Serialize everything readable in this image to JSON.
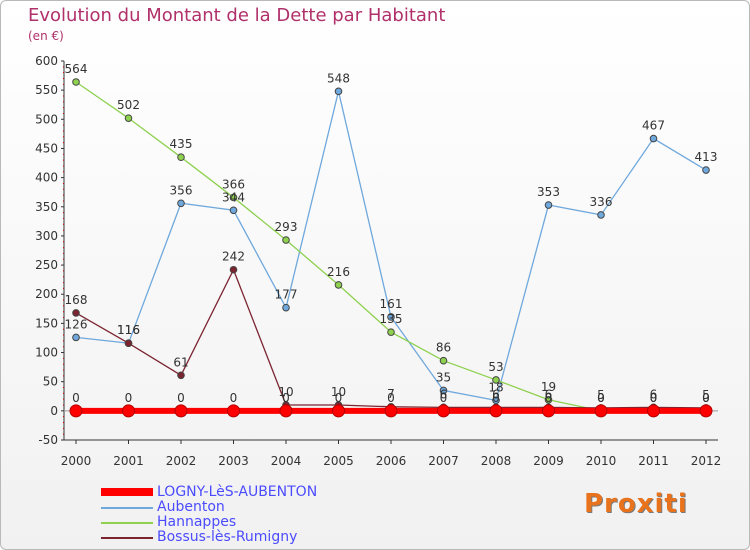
{
  "title": "Evolution du Montant de la Dette par Habitant",
  "subtitle": "(en €)",
  "brand": "Proxiti",
  "chart_data": {
    "type": "line",
    "title": "Evolution du Montant de la Dette par Habitant",
    "ylabel": "(en €)",
    "xlabel": "",
    "ylim": [
      -50,
      600
    ],
    "yticks": [
      -50,
      0,
      50,
      100,
      150,
      200,
      250,
      300,
      350,
      400,
      450,
      500,
      550,
      600
    ],
    "grid": false,
    "legend_position": "bottom-left",
    "x": [
      "2000",
      "2001",
      "2002",
      "2003",
      "2004",
      "2005",
      "2006",
      "2007",
      "2008",
      "2009",
      "2010",
      "2011",
      "2012"
    ],
    "series": [
      {
        "name": "LOGNY-LèS-AUBENTON",
        "color": "#ff0000",
        "values": [
          0,
          0,
          0,
          0,
          0,
          0,
          0,
          0,
          0,
          0,
          0,
          0,
          0
        ],
        "labels": [
          "0",
          "0",
          "0",
          "0",
          "0",
          "0",
          "0",
          "0",
          "0",
          "0",
          "0",
          "0",
          "0"
        ]
      },
      {
        "name": "Aubenton",
        "color": "#6fa8dc",
        "values": [
          126,
          116,
          356,
          344,
          177,
          548,
          161,
          35,
          18,
          353,
          336,
          467,
          413
        ],
        "labels": [
          "126",
          "116",
          "356",
          "344",
          "177",
          "548",
          "161",
          "35",
          "18",
          "353",
          "336",
          "467",
          "413"
        ]
      },
      {
        "name": "Hannappes",
        "color": "#8ed14f",
        "values": [
          564,
          502,
          435,
          366,
          293,
          216,
          135,
          86,
          53,
          19,
          0,
          0,
          0
        ],
        "labels": [
          "564",
          "502",
          "435",
          "366",
          "293",
          "216",
          "135",
          "86",
          "53",
          "19",
          "0",
          "0",
          "0"
        ]
      },
      {
        "name": "Bossus-lès-Rumigny",
        "color": "#7b2430",
        "values": [
          168,
          116,
          61,
          242,
          10,
          10,
          7,
          6,
          6,
          6,
          5,
          6,
          5
        ],
        "labels": [
          "168",
          "116",
          "61",
          "242",
          "10",
          "10",
          "7",
          "6",
          "6",
          "6",
          "5",
          "6",
          "5"
        ]
      }
    ]
  }
}
